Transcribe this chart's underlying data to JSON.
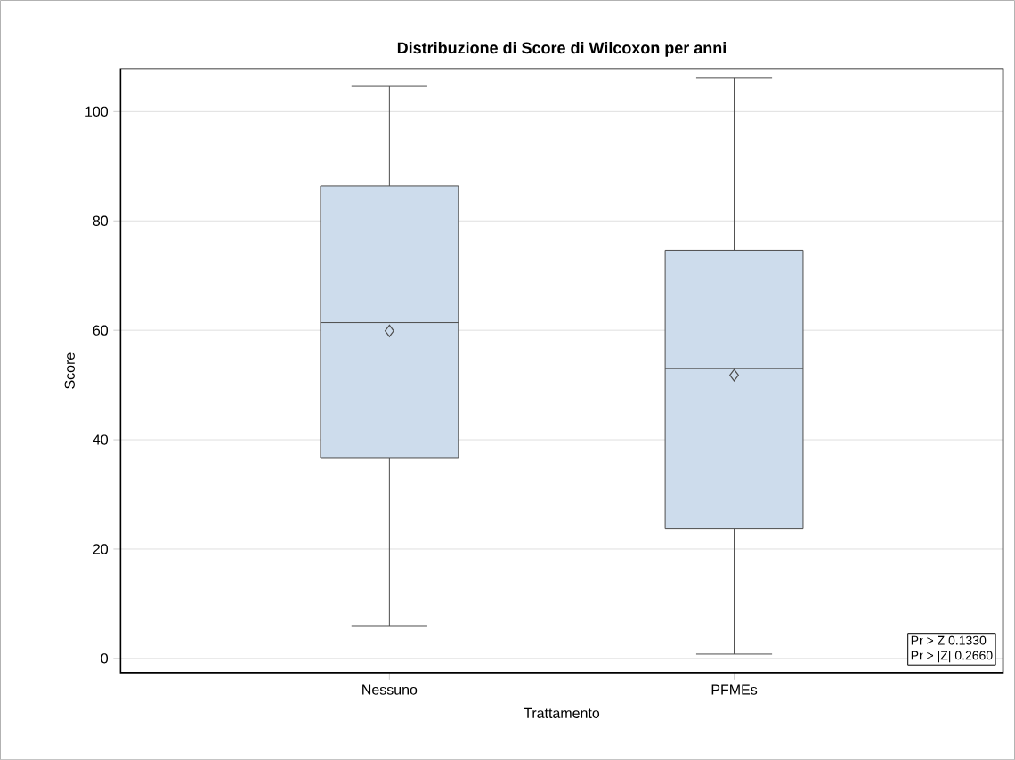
{
  "chart_data": {
    "type": "box",
    "title": "Distribuzione di Score di Wilcoxon per anni",
    "xlabel": "Trattamento",
    "ylabel": "Score",
    "categories": [
      "Nessuno",
      "PFMEs"
    ],
    "boxes": [
      {
        "low": 6.0,
        "q1": 36.6,
        "median": 61.4,
        "q3": 86.4,
        "high": 104.6,
        "mean": 59.9
      },
      {
        "low": 0.8,
        "q1": 23.8,
        "median": 53.0,
        "q3": 74.6,
        "high": 106.1,
        "mean": 51.8
      }
    ],
    "color": "#cddcec",
    "marker": "diamond",
    "grid": "y",
    "ylim": [
      -2.6,
      107.8
    ],
    "yticks": [
      0,
      20,
      40,
      60,
      80,
      100
    ],
    "annotations": [
      "Pr > Z    0.1330",
      "Pr > |Z|    0.2660"
    ]
  }
}
